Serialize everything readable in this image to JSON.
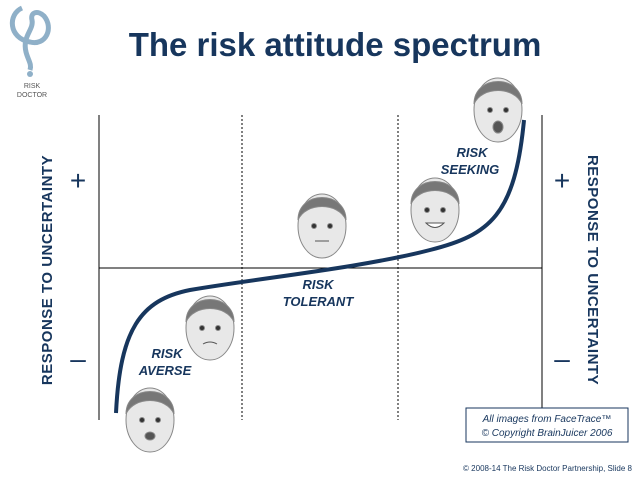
{
  "logo": {
    "line1": "RISK",
    "line2": "DOCTOR"
  },
  "title": "The risk attitude spectrum",
  "axes": {
    "left_label": "RESPONSE TO UNCERTAINTY",
    "right_label": "RESPONSE TO UNCERTAINTY",
    "left_plus": "+",
    "left_minus": "–",
    "right_plus": "+",
    "right_minus": "–"
  },
  "labels": [
    {
      "line1": "RISK",
      "line2": "AVERSE"
    },
    {
      "line1": "RISK",
      "line2": "TOLERANT"
    },
    {
      "line1": "RISK",
      "line2": "SEEKING"
    }
  ],
  "credit": {
    "line1": "All images from FaceTrace™",
    "line2": "© Copyright BrainJuicer 2006"
  },
  "footer": "© 2008-14  The Risk Doctor Partnership, Slide 8"
}
